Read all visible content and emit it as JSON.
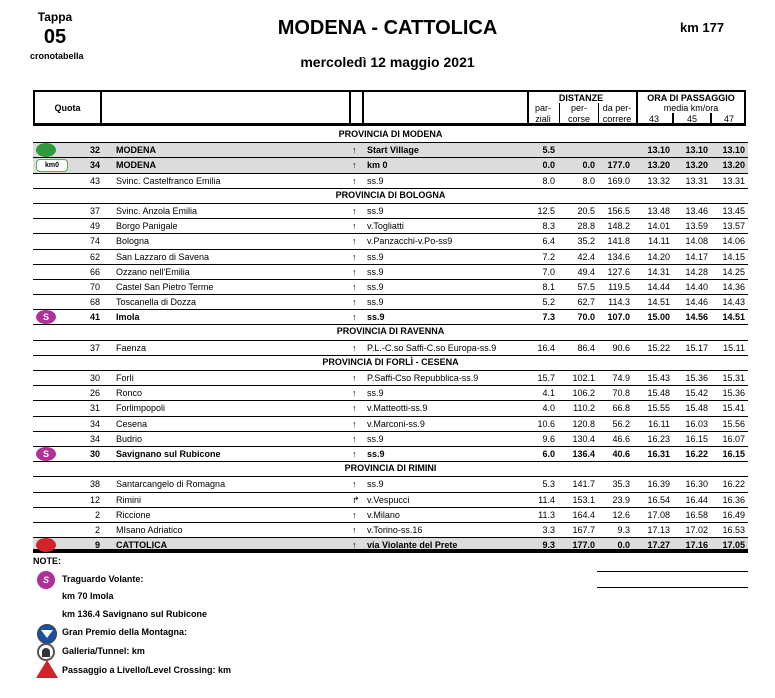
{
  "header": {
    "tappa_label": "Tappa",
    "tappa_num": "05",
    "subtitle": "cronotabella",
    "title": "MODENA - CATTOLICA",
    "km": "km 177",
    "date": "mercoledì 12 maggio 2021"
  },
  "columns": {
    "quota": "Quota",
    "distanze": "DISTANZE",
    "parziali_1": "par-",
    "parziali_2": "ziali",
    "percorse_1": "per-",
    "percorse_2": "corse",
    "dapercorrere_1": "da per-",
    "dapercorrere_2": "correre",
    "ora": "ORA DI PASSAGGIO",
    "media": "media km/ora",
    "speeds": [
      "43",
      "45",
      "47"
    ]
  },
  "colors": {
    "start": "#2e9a3a",
    "sprint": "#b0309a",
    "finish": "#d0242a",
    "gray_row": "#dcdcdc"
  },
  "rows": [
    {
      "type": "prov",
      "name": "PROVINCIA DI MODENA"
    },
    {
      "type": "gray",
      "icon": "bike-start-icon",
      "quota": "32",
      "name": "MODENA",
      "arrow": "↑",
      "road": "Start Village",
      "parz": "5.5",
      "perc": "",
      "dap": "",
      "t": [
        "13.10",
        "13.10",
        "13.10"
      ]
    },
    {
      "type": "gray",
      "icon": "km0-icon",
      "icon_text": "km0",
      "quota": "34",
      "name": "MODENA",
      "arrow": "↑",
      "road": "km 0",
      "parz": "0.0",
      "perc": "0.0",
      "dap": "177.0",
      "t": [
        "13.20",
        "13.20",
        "13.20"
      ]
    },
    {
      "type": "normal",
      "quota": "43",
      "name": "Svinc. Castelfranco Emilia",
      "arrow": "↑",
      "road": "ss.9",
      "parz": "8.0",
      "perc": "8.0",
      "dap": "169.0",
      "t": [
        "13.32",
        "13.31",
        "13.31"
      ]
    },
    {
      "type": "prov",
      "name": "PROVINCIA DI BOLOGNA"
    },
    {
      "type": "normal",
      "quota": "37",
      "name": "Svinc. Anzola Emilia",
      "arrow": "↑",
      "road": "ss.9",
      "parz": "12.5",
      "perc": "20.5",
      "dap": "156.5",
      "t": [
        "13.48",
        "13.46",
        "13.45"
      ]
    },
    {
      "type": "normal",
      "quota": "49",
      "name": "Borgo Panigale",
      "arrow": "↑",
      "road": "v.Togliatti",
      "parz": "8.3",
      "perc": "28.8",
      "dap": "148.2",
      "t": [
        "14.01",
        "13.59",
        "13.57"
      ]
    },
    {
      "type": "normal",
      "quota": "74",
      "name": "Bologna",
      "arrow": "↑",
      "road": "v.Panzacchi-v.Po-ss9",
      "parz": "6.4",
      "perc": "35.2",
      "dap": "141.8",
      "t": [
        "14.11",
        "14.08",
        "14.06"
      ]
    },
    {
      "type": "normal",
      "quota": "62",
      "name": "San Lazzaro di Savena",
      "arrow": "↑",
      "road": "ss.9",
      "parz": "7.2",
      "perc": "42.4",
      "dap": "134.6",
      "t": [
        "14.20",
        "14.17",
        "14.15"
      ]
    },
    {
      "type": "normal",
      "quota": "66",
      "name": "Ozzano nell'Emilia",
      "arrow": "↑",
      "road": "ss.9",
      "parz": "7.0",
      "perc": "49.4",
      "dap": "127.6",
      "t": [
        "14.31",
        "14.28",
        "14.25"
      ]
    },
    {
      "type": "normal",
      "quota": "70",
      "name": "Castel San Pietro Terme",
      "arrow": "↑",
      "road": "ss.9",
      "parz": "8.1",
      "perc": "57.5",
      "dap": "119.5",
      "t": [
        "14.44",
        "14.40",
        "14.36"
      ]
    },
    {
      "type": "normal",
      "quota": "68",
      "name": "Toscanella di Dozza",
      "arrow": "↑",
      "road": "ss.9",
      "parz": "5.2",
      "perc": "62.7",
      "dap": "114.3",
      "t": [
        "14.51",
        "14.46",
        "14.43"
      ]
    },
    {
      "type": "bold",
      "icon": "sprint-icon",
      "icon_text": "S",
      "quota": "41",
      "name": "Imola",
      "arrow": "↑",
      "road": "ss.9",
      "parz": "7.3",
      "perc": "70.0",
      "dap": "107.0",
      "t": [
        "15.00",
        "14.56",
        "14.51"
      ]
    },
    {
      "type": "prov",
      "name": "PROVINCIA DI RAVENNA"
    },
    {
      "type": "normal",
      "quota": "37",
      "name": "Faenza",
      "arrow": "↑",
      "road": "P.L.-C.so Saffi-C.so Europa-ss.9",
      "parz": "16.4",
      "perc": "86.4",
      "dap": "90.6",
      "t": [
        "15.22",
        "15.17",
        "15.11"
      ]
    },
    {
      "type": "prov",
      "name": "PROVINCIA DI FORLÌ - CESENA"
    },
    {
      "type": "normal",
      "quota": "30",
      "name": "Forlì",
      "arrow": "↑",
      "road": "P.Saffi-Cso Repubblica-ss.9",
      "parz": "15.7",
      "perc": "102.1",
      "dap": "74.9",
      "t": [
        "15.43",
        "15.36",
        "15.31"
      ]
    },
    {
      "type": "normal",
      "quota": "26",
      "name": "Ronco",
      "arrow": "↑",
      "road": "ss.9",
      "parz": "4.1",
      "perc": "106.2",
      "dap": "70.8",
      "t": [
        "15.48",
        "15.42",
        "15.36"
      ]
    },
    {
      "type": "normal",
      "quota": "31",
      "name": "Forlimpopoli",
      "arrow": "↑",
      "road": "v.Matteotti-ss.9",
      "parz": "4.0",
      "perc": "110.2",
      "dap": "66.8",
      "t": [
        "15.55",
        "15.48",
        "15.41"
      ]
    },
    {
      "type": "normal",
      "quota": "34",
      "name": "Cesena",
      "arrow": "↑",
      "road": "v.Marconi-ss.9",
      "parz": "10.6",
      "perc": "120.8",
      "dap": "56.2",
      "t": [
        "16.11",
        "16.03",
        "15.56"
      ]
    },
    {
      "type": "normal",
      "quota": "34",
      "name": "Budrio",
      "arrow": "↑",
      "road": "ss.9",
      "parz": "9.6",
      "perc": "130.4",
      "dap": "46.6",
      "t": [
        "16.23",
        "16.15",
        "16.07"
      ]
    },
    {
      "type": "bold",
      "icon": "sprint-icon",
      "icon_text": "S",
      "quota": "30",
      "name": "Savignano sul Rubicone",
      "arrow": "↑",
      "road": "ss.9",
      "parz": "6.0",
      "perc": "136.4",
      "dap": "40.6",
      "t": [
        "16.31",
        "16.22",
        "16.15"
      ]
    },
    {
      "type": "prov",
      "name": "PROVINCIA DI RIMINI"
    },
    {
      "type": "normal",
      "quota": "38",
      "name": "Santarcangelo di Romagna",
      "arrow": "↑",
      "road": "ss.9",
      "parz": "5.3",
      "perc": "141.7",
      "dap": "35.3",
      "t": [
        "16.39",
        "16.30",
        "16.22"
      ]
    },
    {
      "type": "normal",
      "quota": "12",
      "name": "Rimini",
      "arrow": "↱",
      "road": "v.Vespucci",
      "parz": "11.4",
      "perc": "153.1",
      "dap": "23.9",
      "t": [
        "16.54",
        "16.44",
        "16.36"
      ]
    },
    {
      "type": "normal",
      "quota": "2",
      "name": "Riccione",
      "arrow": "↑",
      "road": "v.Milano",
      "parz": "11.3",
      "perc": "164.4",
      "dap": "12.6",
      "t": [
        "17.08",
        "16.58",
        "16.49"
      ]
    },
    {
      "type": "normal",
      "quota": "2",
      "name": "MIsano Adriatico",
      "arrow": "↑",
      "road": "v.Torino-ss.16",
      "parz": "3.3",
      "perc": "167.7",
      "dap": "9.3",
      "t": [
        "17.13",
        "17.02",
        "16.53"
      ]
    },
    {
      "type": "gray",
      "icon": "finish-icon",
      "quota": "9",
      "name": "CATTOLICA",
      "arrow": "↑",
      "road": "via Violante del Prete",
      "parz": "9.3",
      "perc": "177.0",
      "dap": "0.0",
      "t": [
        "17.27",
        "17.16",
        "17.05"
      ]
    }
  ],
  "notes": {
    "title": "NOTE:",
    "sprint": "Traguardo Volante:",
    "sprint_1": "km 70   Imola",
    "sprint_2": "km 136.4   Savignano sul Rubicone",
    "gpm": "Gran Premio della Montagna:",
    "tunnel": "Galleria/Tunnel:  km",
    "crossing": "Passaggio a Livello/Level Crossing:  km"
  }
}
